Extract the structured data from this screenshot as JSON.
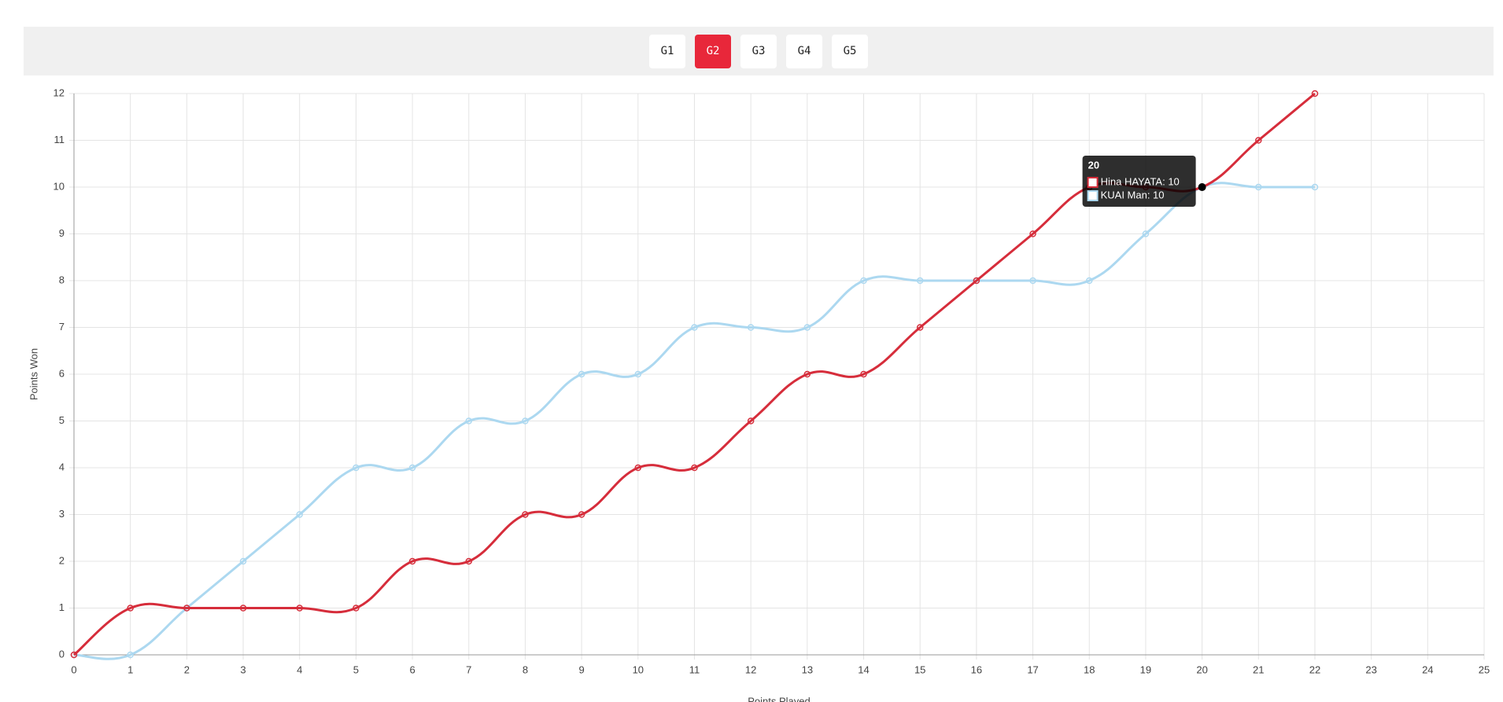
{
  "buttons": [
    "G1",
    "G2",
    "G3",
    "G4",
    "G5"
  ],
  "selected": 1,
  "chart_data": {
    "type": "line",
    "x": [
      0,
      1,
      2,
      3,
      4,
      5,
      6,
      7,
      8,
      9,
      10,
      11,
      12,
      13,
      14,
      15,
      16,
      17,
      18,
      19,
      20,
      21,
      22
    ],
    "series": [
      {
        "name": "Hina HAYATA",
        "color": "#d62d3b",
        "values": [
          0,
          1,
          1,
          1,
          1,
          1,
          2,
          2,
          3,
          3,
          4,
          4,
          5,
          6,
          6,
          7,
          8,
          9,
          10,
          10,
          10,
          11,
          12
        ]
      },
      {
        "name": "KUAI Man",
        "color": "#acd8f0",
        "values": [
          0,
          0,
          1,
          2,
          3,
          4,
          4,
          5,
          5,
          6,
          6,
          7,
          7,
          7,
          8,
          8,
          8,
          8,
          8,
          9,
          10,
          10,
          10
        ]
      }
    ],
    "xlabel": "Points Played",
    "ylabel": "Points Won",
    "xlim": [
      0,
      25
    ],
    "xticks": [
      0,
      1,
      2,
      3,
      4,
      5,
      6,
      7,
      8,
      9,
      10,
      11,
      12,
      13,
      14,
      15,
      16,
      17,
      18,
      19,
      20,
      21,
      22,
      23,
      24,
      25
    ],
    "ylim": [
      0,
      12
    ],
    "yticks": [
      0,
      1,
      2,
      3,
      4,
      5,
      6,
      7,
      8,
      9,
      10,
      11,
      12
    ],
    "grid": true,
    "tooltip": {
      "index": 20,
      "title": "20",
      "items": [
        "Hina HAYATA: 10",
        "KUAI Man: 10"
      ]
    }
  }
}
